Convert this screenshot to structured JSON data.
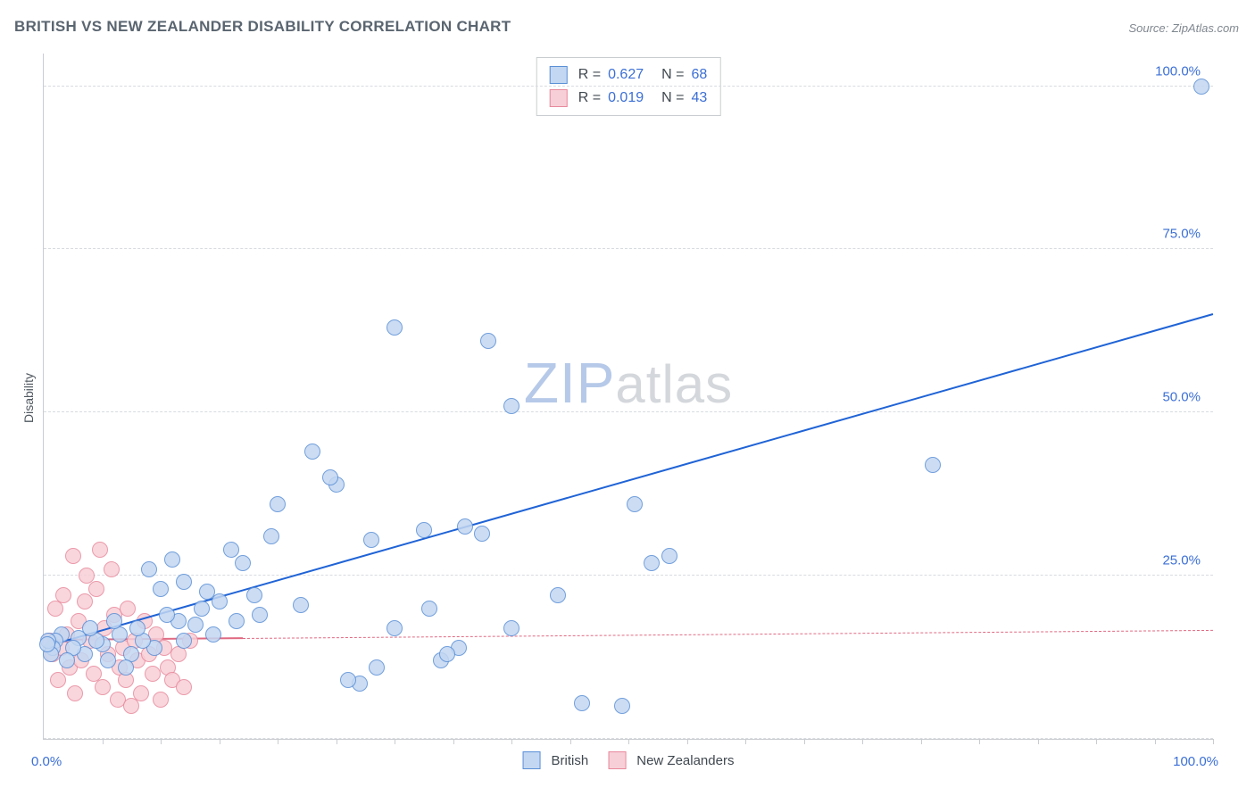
{
  "title": "BRITISH VS NEW ZEALANDER DISABILITY CORRELATION CHART",
  "source": "Source: ZipAtlas.com",
  "ylabel": "Disability",
  "watermark": {
    "big": "ZIP",
    "small": "atlas",
    "color_big": "#b6c9e8",
    "color_small": "#d4d7db"
  },
  "chart": {
    "type": "scatter",
    "background_color": "#ffffff",
    "grid_color": "#d8dbdf",
    "axis_color": "#c9ccd0",
    "xlim": [
      0,
      100
    ],
    "ylim": [
      0,
      105
    ],
    "ytick_labels": [
      {
        "v": 25,
        "label": "25.0%"
      },
      {
        "v": 50,
        "label": "50.0%"
      },
      {
        "v": 75,
        "label": "75.0%"
      },
      {
        "v": 100,
        "label": "100.0%"
      }
    ],
    "xtick_positions": [
      5,
      10,
      15,
      20,
      25,
      30,
      35,
      40,
      45,
      50,
      55,
      60,
      65,
      70,
      75,
      80,
      85,
      90,
      95,
      100
    ],
    "x_origin_label": "0.0%",
    "x_end_label": "100.0%",
    "marker_radius": 8,
    "marker_stroke_width": 1,
    "series": [
      {
        "name": "British",
        "fill": "#c3d7f2",
        "stroke": "#5a8fd6",
        "R": "0.627",
        "N": "68",
        "trend": {
          "x1": 0,
          "y1": 14,
          "x2": 100,
          "y2": 65,
          "style": "solid",
          "color": "#1f63d6",
          "width": 2
        },
        "points": [
          [
            99,
            100
          ],
          [
            76,
            42
          ],
          [
            50.5,
            36
          ],
          [
            40,
            51
          ],
          [
            52,
            27
          ],
          [
            53.5,
            28
          ],
          [
            49.5,
            5
          ],
          [
            46,
            5.5
          ],
          [
            44,
            22
          ],
          [
            40,
            17
          ],
          [
            37.5,
            31.5
          ],
          [
            38,
            61
          ],
          [
            35.5,
            14
          ],
          [
            36,
            32.5
          ],
          [
            34,
            12
          ],
          [
            34.5,
            13
          ],
          [
            33,
            20
          ],
          [
            32.5,
            32
          ],
          [
            30,
            63
          ],
          [
            30,
            17
          ],
          [
            28,
            30.5
          ],
          [
            28.5,
            11
          ],
          [
            27,
            8.5
          ],
          [
            26,
            9
          ],
          [
            25,
            39
          ],
          [
            24.5,
            40
          ],
          [
            23,
            44
          ],
          [
            22,
            20.5
          ],
          [
            20,
            36
          ],
          [
            19.5,
            31
          ],
          [
            18.5,
            19
          ],
          [
            18,
            22
          ],
          [
            17,
            27
          ],
          [
            16,
            29
          ],
          [
            16.5,
            18
          ],
          [
            15,
            21
          ],
          [
            14,
            22.5
          ],
          [
            14.5,
            16
          ],
          [
            13,
            17.5
          ],
          [
            13.5,
            20
          ],
          [
            12,
            24
          ],
          [
            12,
            15
          ],
          [
            11,
            27.5
          ],
          [
            11.5,
            18
          ],
          [
            10.5,
            19
          ],
          [
            10,
            23
          ],
          [
            9.5,
            14
          ],
          [
            9,
            26
          ],
          [
            8.5,
            15
          ],
          [
            8,
            17
          ],
          [
            7.5,
            13
          ],
          [
            7,
            11
          ],
          [
            6.5,
            16
          ],
          [
            6,
            18
          ],
          [
            5.5,
            12
          ],
          [
            5,
            14.5
          ],
          [
            4.5,
            15
          ],
          [
            4,
            17
          ],
          [
            3.5,
            13
          ],
          [
            3,
            15.5
          ],
          [
            2.5,
            14
          ],
          [
            2,
            12
          ],
          [
            1.5,
            16
          ],
          [
            1,
            15
          ],
          [
            0.8,
            14
          ],
          [
            0.6,
            13
          ],
          [
            0.4,
            15
          ],
          [
            0.3,
            14.5
          ]
        ]
      },
      {
        "name": "New Zealanders",
        "fill": "#f7cfd7",
        "stroke": "#e8899c",
        "R": "0.019",
        "N": "43",
        "trend": {
          "x1": 0,
          "y1": 15,
          "x2": 100,
          "y2": 16.5,
          "style": "solid-then-dash",
          "solid_until": 17,
          "color": "#e06a82",
          "width": 1.5
        },
        "points": [
          [
            0.5,
            15
          ],
          [
            0.8,
            13
          ],
          [
            1,
            20
          ],
          [
            1.2,
            9
          ],
          [
            1.5,
            14
          ],
          [
            1.7,
            22
          ],
          [
            2,
            16
          ],
          [
            2.2,
            11
          ],
          [
            2.5,
            28
          ],
          [
            2.7,
            7
          ],
          [
            3,
            18
          ],
          [
            3.2,
            12
          ],
          [
            3.5,
            21
          ],
          [
            3.7,
            25
          ],
          [
            4,
            15
          ],
          [
            4.3,
            10
          ],
          [
            4.5,
            23
          ],
          [
            4.8,
            29
          ],
          [
            5,
            8
          ],
          [
            5.2,
            17
          ],
          [
            5.5,
            13
          ],
          [
            5.8,
            26
          ],
          [
            6,
            19
          ],
          [
            6.3,
            6
          ],
          [
            6.5,
            11
          ],
          [
            6.8,
            14
          ],
          [
            7,
            9
          ],
          [
            7.2,
            20
          ],
          [
            7.5,
            5
          ],
          [
            7.8,
            15
          ],
          [
            8,
            12
          ],
          [
            8.3,
            7
          ],
          [
            8.6,
            18
          ],
          [
            9,
            13
          ],
          [
            9.3,
            10
          ],
          [
            9.6,
            16
          ],
          [
            10,
            6
          ],
          [
            10.3,
            14
          ],
          [
            10.6,
            11
          ],
          [
            11,
            9
          ],
          [
            11.5,
            13
          ],
          [
            12,
            8
          ],
          [
            12.5,
            15
          ]
        ]
      }
    ],
    "legend_bottom": [
      {
        "label": "British",
        "fill": "#c3d7f2",
        "stroke": "#5a8fd6"
      },
      {
        "label": "New Zealanders",
        "fill": "#f7cfd7",
        "stroke": "#e8899c"
      }
    ]
  }
}
